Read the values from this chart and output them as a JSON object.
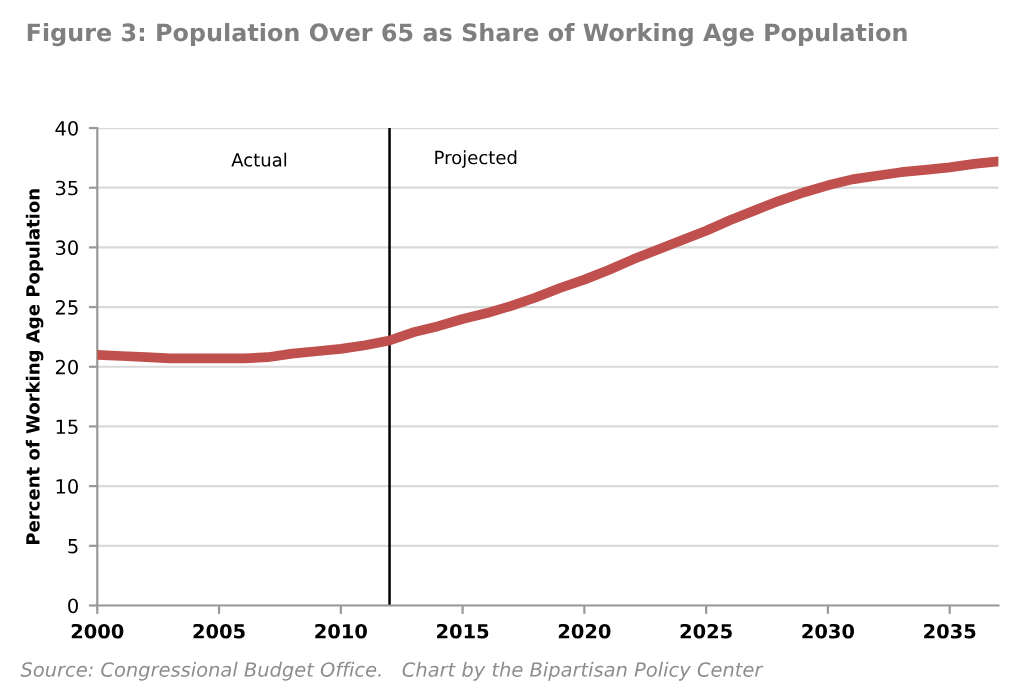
{
  "chart_data": {
    "type": "line",
    "title": "Figure 3: Population Over 65 as Share of Working Age Population",
    "ylabel": "Percent of Working Age Population",
    "x": [
      2000,
      2001,
      2002,
      2003,
      2004,
      2005,
      2006,
      2007,
      2008,
      2009,
      2010,
      2011,
      2012,
      2013,
      2014,
      2015,
      2016,
      2017,
      2018,
      2019,
      2020,
      2021,
      2022,
      2023,
      2024,
      2025,
      2026,
      2027,
      2028,
      2029,
      2030,
      2031,
      2032,
      2033,
      2034,
      2035,
      2036,
      2037
    ],
    "series": [
      {
        "color": "#c0504d",
        "values": [
          21.0,
          20.9,
          20.8,
          20.7,
          20.7,
          20.7,
          20.7,
          20.8,
          21.1,
          21.3,
          21.5,
          21.8,
          22.2,
          22.9,
          23.4,
          24.0,
          24.5,
          25.1,
          25.8,
          26.6,
          27.3,
          28.1,
          29.0,
          29.8,
          30.6,
          31.4,
          32.3,
          33.1,
          33.9,
          34.6,
          35.2,
          35.7,
          36.0,
          36.3,
          36.5,
          36.7,
          37.0,
          37.2
        ]
      }
    ],
    "xlim": [
      2000,
      2037
    ],
    "xticks": [
      2000,
      2005,
      2010,
      2015,
      2020,
      2025,
      2030,
      2035
    ],
    "ylim": [
      0,
      40
    ],
    "yticks": [
      0,
      5,
      10,
      15,
      20,
      25,
      30,
      35,
      40
    ],
    "grid": "y",
    "legend": false,
    "marker": "none",
    "line_style": "solid",
    "ref_lines": [
      {
        "axis": "x",
        "value": 2012,
        "color": "#000000"
      }
    ],
    "annotations": [
      "Actual",
      "Projected",
      "Source: Congressional Budget Office.   Chart by the Bipartisan Policy Center"
    ]
  }
}
